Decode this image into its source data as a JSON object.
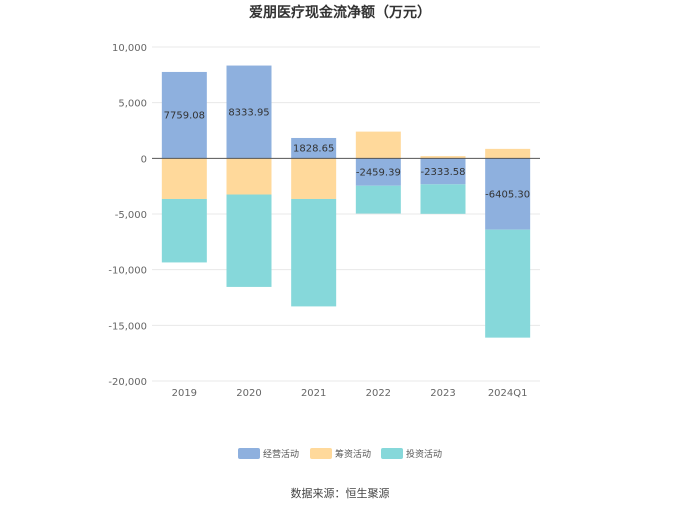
{
  "chart_data": {
    "type": "bar",
    "stacked": true,
    "title": "爱朋医疗现金流净额（万元）",
    "categories": [
      "2019",
      "2020",
      "2021",
      "2022",
      "2023",
      "2024Q1"
    ],
    "series": [
      {
        "name": "经营活动",
        "color": "#8eb0de",
        "values": [
          7759.08,
          8333.95,
          1828.65,
          -2459.39,
          -2333.58,
          -6405.3
        ]
      },
      {
        "name": "筹资活动",
        "color": "#ffd99b",
        "values": [
          -3650,
          -3250,
          -3650,
          2400,
          200,
          850
        ]
      },
      {
        "name": "投资活动",
        "color": "#86d8da",
        "values": [
          -5700,
          -8300,
          -9650,
          -2500,
          -2650,
          -9700
        ]
      }
    ],
    "data_labels": [
      "7759.08",
      "8333.95",
      "1828.65",
      "-2459.39",
      "-2333.58",
      "-6405.30"
    ],
    "ylim": [
      -20000,
      10000
    ],
    "yticks": [
      10000,
      5000,
      0,
      -5000,
      -10000,
      -15000,
      -20000
    ],
    "ytick_labels": [
      "10,000",
      "5,000",
      "0",
      "-5,000",
      "-10,000",
      "-15,000",
      "-20,000"
    ],
    "grid": true,
    "legend_position": "bottom",
    "source": "数据来源：恒生聚源"
  }
}
